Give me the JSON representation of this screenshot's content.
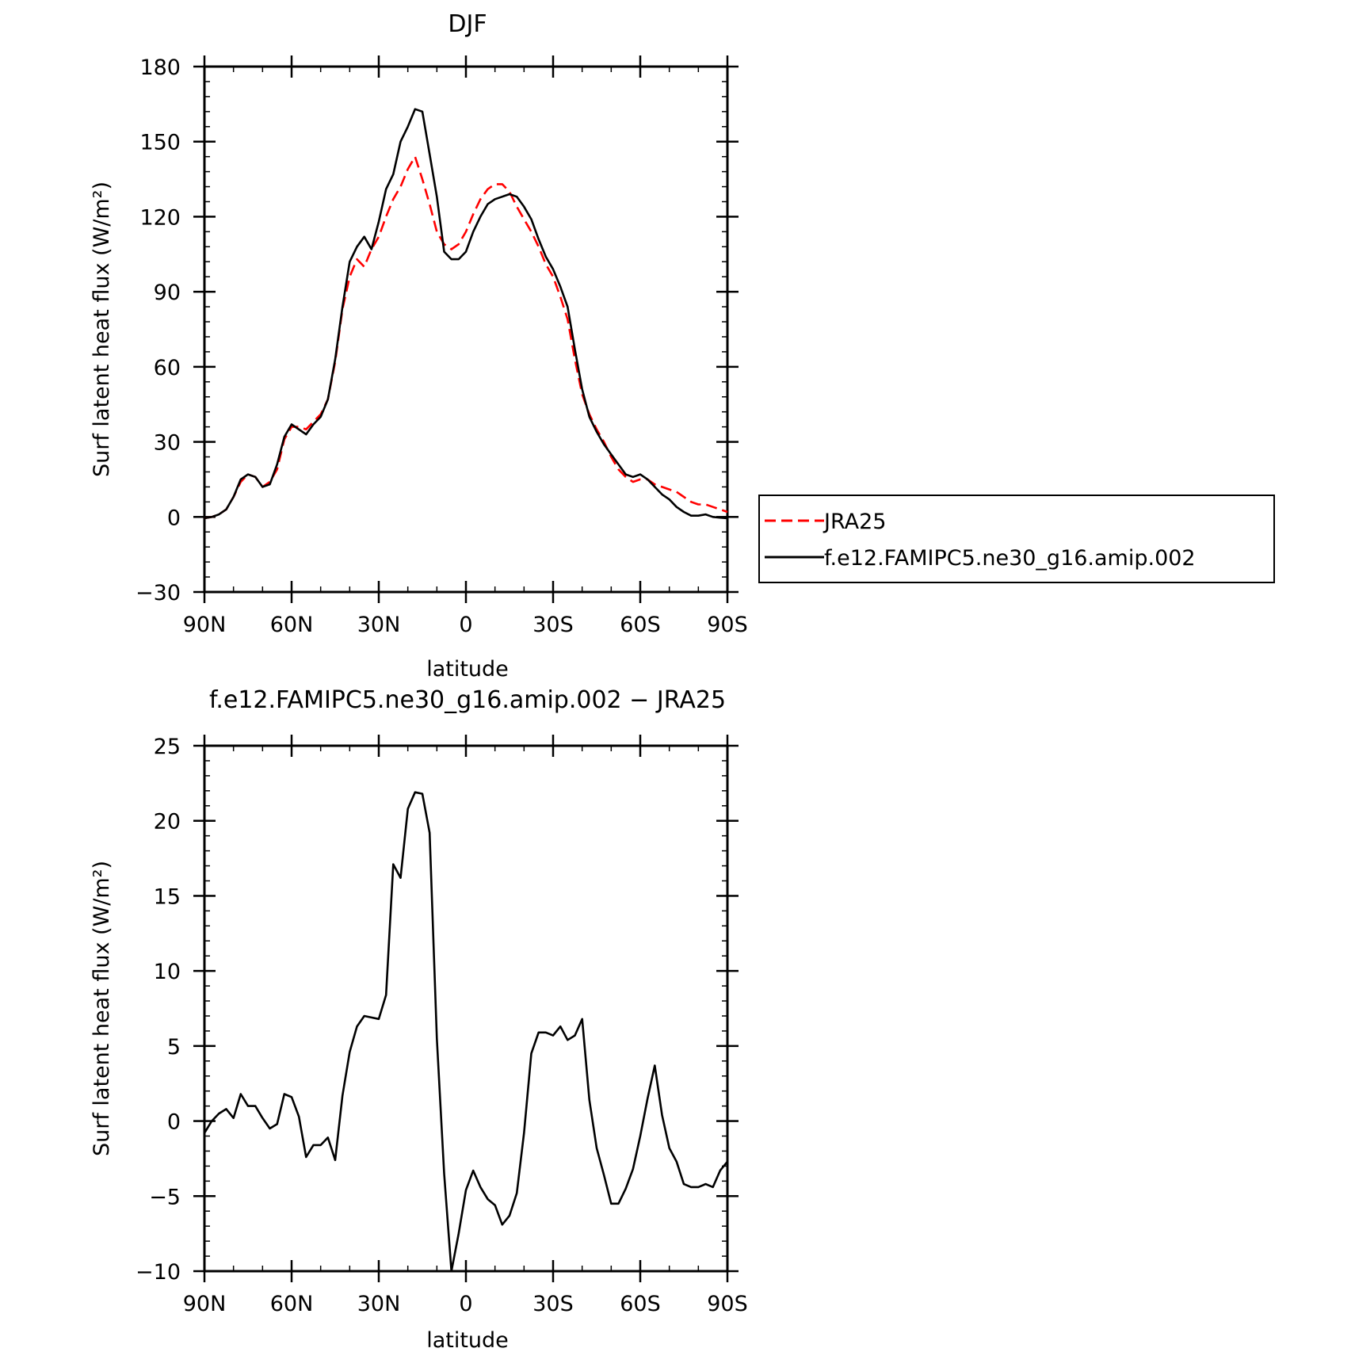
{
  "chart_data": [
    {
      "type": "line",
      "title": "DJF",
      "xlabel": "latitude",
      "ylabel": "Surf latent heat flux (W/m²)",
      "xlim": [
        90,
        -90
      ],
      "ylim": [
        -30,
        180
      ],
      "yticks": [
        -30,
        0,
        30,
        60,
        90,
        120,
        150,
        180
      ],
      "ytick_labels": [
        "−30",
        "0",
        "30",
        "60",
        "90",
        "120",
        "150",
        "180"
      ],
      "xticks": [
        90,
        60,
        30,
        0,
        -30,
        -60,
        -90
      ],
      "xtick_labels": [
        "90N",
        "60N",
        "30N",
        "0",
        "30S",
        "60S",
        "90S"
      ],
      "grid": false,
      "legend_position": "right",
      "series": [
        {
          "name": "JRA25",
          "color": "#ff0000",
          "dash": "dashed",
          "x": [
            90,
            87.5,
            85,
            82.5,
            80,
            77.5,
            75,
            72.5,
            70,
            67.5,
            65,
            62.5,
            60,
            57.5,
            55,
            52.5,
            50,
            47.5,
            45,
            42.5,
            40,
            37.5,
            35,
            32.5,
            30,
            27.5,
            25,
            22.5,
            20,
            17.5,
            15,
            12.5,
            10,
            7.5,
            5,
            2.5,
            0,
            -2.5,
            -5,
            -7.5,
            -10,
            -12.5,
            -15,
            -17.5,
            -20,
            -22.5,
            -25,
            -27.5,
            -30,
            -32.5,
            -35,
            -37.5,
            -40,
            -42.5,
            -45,
            -47.5,
            -50,
            -52.5,
            -55,
            -57.5,
            -60,
            -62.5,
            -65,
            -67.5,
            -70,
            -72.5,
            -75,
            -77.5,
            -80,
            -82.5,
            -85,
            -87.5,
            -90
          ],
          "y": [
            -0.5,
            0,
            1,
            3,
            8,
            14,
            17,
            16,
            12,
            14,
            19,
            31,
            36,
            36,
            35,
            38,
            41,
            47,
            62,
            83,
            96,
            103,
            100,
            107,
            112,
            120,
            127,
            132,
            139,
            144,
            135,
            125,
            114,
            109,
            107,
            109,
            114,
            121,
            127,
            131,
            133,
            133,
            130,
            124,
            119,
            114,
            108,
            101,
            96,
            88,
            79,
            63,
            49,
            41,
            35,
            30,
            24,
            19,
            16,
            14,
            15,
            15,
            13,
            12,
            11,
            10,
            8,
            6,
            5,
            5,
            4,
            3,
            2
          ]
        },
        {
          "name": "f.e12.FAMIPC5.ne30_g16.amip.002",
          "color": "#000000",
          "dash": "solid",
          "x": [
            90,
            87.5,
            85,
            82.5,
            80,
            77.5,
            75,
            72.5,
            70,
            67.5,
            65,
            62.5,
            60,
            57.5,
            55,
            52.5,
            50,
            47.5,
            45,
            42.5,
            40,
            37.5,
            35,
            32.5,
            30,
            27.5,
            25,
            22.5,
            20,
            17.5,
            15,
            12.5,
            10,
            7.5,
            5,
            2.5,
            0,
            -2.5,
            -5,
            -7.5,
            -10,
            -12.5,
            -15,
            -17.5,
            -20,
            -22.5,
            -25,
            -27.5,
            -30,
            -32.5,
            -35,
            -37.5,
            -40,
            -42.5,
            -45,
            -47.5,
            -50,
            -52.5,
            -55,
            -57.5,
            -60,
            -62.5,
            -65,
            -67.5,
            -70,
            -72.5,
            -75,
            -77.5,
            -80,
            -82.5,
            -85,
            -87.5,
            -90
          ],
          "y": [
            -0.5,
            0,
            1,
            3,
            8,
            15,
            17,
            16,
            12,
            13,
            21,
            32,
            37,
            35,
            33,
            37,
            40,
            47,
            63,
            84,
            102,
            108,
            112,
            107,
            118,
            131,
            137,
            150,
            156,
            163,
            162,
            145,
            128,
            106,
            103,
            103,
            106,
            114,
            120,
            125,
            127,
            128,
            129,
            128,
            124,
            119,
            111,
            104,
            99,
            92,
            84,
            67,
            51,
            40,
            34,
            29,
            25,
            21,
            17,
            16,
            17,
            15,
            12,
            9,
            7,
            4,
            2,
            0.5,
            0.5,
            1,
            0,
            -0.3,
            -0.5
          ]
        }
      ]
    },
    {
      "type": "line",
      "title": "f.e12.FAMIPC5.ne30_g16.amip.002 − JRA25",
      "xlabel": "latitude",
      "ylabel": "Surf latent heat flux (W/m²)",
      "xlim": [
        90,
        -90
      ],
      "ylim": [
        -10,
        25
      ],
      "yticks": [
        -10,
        -5,
        0,
        5,
        10,
        15,
        20,
        25
      ],
      "ytick_labels": [
        "−10",
        "−5",
        "0",
        "5",
        "10",
        "15",
        "20",
        "25"
      ],
      "xticks": [
        90,
        60,
        30,
        0,
        -30,
        -60,
        -90
      ],
      "xtick_labels": [
        "90N",
        "60N",
        "30N",
        "0",
        "30S",
        "60S",
        "90S"
      ],
      "grid": false,
      "series": [
        {
          "color": "#000000",
          "dash": "solid",
          "x": [
            90,
            87.5,
            85,
            82.5,
            80,
            77.5,
            75,
            72.5,
            70,
            67.5,
            65,
            62.5,
            60,
            57.5,
            55,
            52.5,
            50,
            47.5,
            45,
            42.5,
            40,
            37.5,
            35,
            32.5,
            30,
            27.5,
            25,
            22.5,
            20,
            17.5,
            15,
            12.5,
            10,
            7.5,
            5,
            2.5,
            0,
            -2.5,
            -5,
            -7.5,
            -10,
            -12.5,
            -15,
            -17.5,
            -20,
            -22.5,
            -25,
            -27.5,
            -30,
            -32.5,
            -35,
            -37.5,
            -40,
            -42.5,
            -45,
            -47.5,
            -50,
            -52.5,
            -55,
            -57.5,
            -60,
            -62.5,
            -65,
            -67.5,
            -70,
            -72.5,
            -75,
            -77.5,
            -80,
            -82.5,
            -85,
            -87.5,
            -90
          ],
          "y": [
            -0.8,
            0,
            0.5,
            0.8,
            0.2,
            1.8,
            1.0,
            1.0,
            0.2,
            -0.5,
            -0.2,
            1.8,
            1.6,
            0.3,
            -2.4,
            -1.6,
            -1.6,
            -1.1,
            -2.6,
            1.7,
            4.6,
            6.3,
            7.0,
            6.9,
            6.8,
            8.4,
            17.1,
            16.2,
            20.8,
            21.9,
            21.8,
            19.2,
            5.5,
            -3.5,
            -10.0,
            -7.5,
            -4.6,
            -3.3,
            -4.4,
            -5.2,
            -5.6,
            -6.9,
            -6.3,
            -4.8,
            -0.8,
            4.5,
            5.9,
            5.9,
            5.7,
            6.3,
            5.4,
            5.7,
            6.8,
            1.4,
            -1.8,
            -3.6,
            -5.5,
            -5.5,
            -4.5,
            -3.2,
            -1.0,
            1.5,
            3.7,
            0.4,
            -1.8,
            -2.7,
            -4.2,
            -4.4,
            -4.4,
            -4.2,
            -4.4,
            -3.3,
            -2.7
          ]
        }
      ]
    }
  ]
}
